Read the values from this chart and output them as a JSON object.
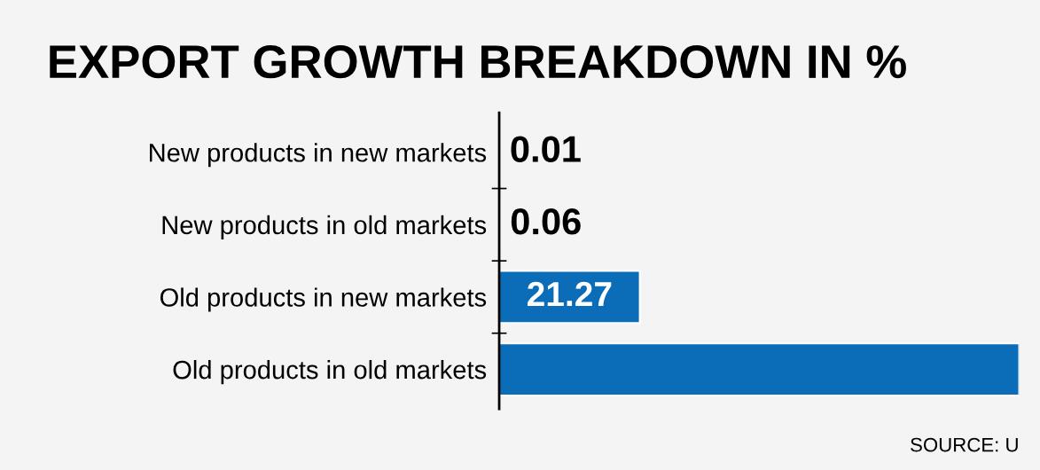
{
  "chart_data": {
    "type": "bar",
    "orientation": "horizontal",
    "title": "EXPORT GROWTH BREAKDOWN IN %",
    "categories": [
      "New products in new markets",
      "New products in old markets",
      "Old products in new markets",
      "Old products in old markets"
    ],
    "values": [
      0.01,
      0.06,
      21.27,
      78.66
    ],
    "value_labels": [
      "0.01",
      "0.06",
      "21.27",
      null
    ],
    "color": "#0b6db7",
    "annotations": [
      "SOURCE: U"
    ]
  }
}
